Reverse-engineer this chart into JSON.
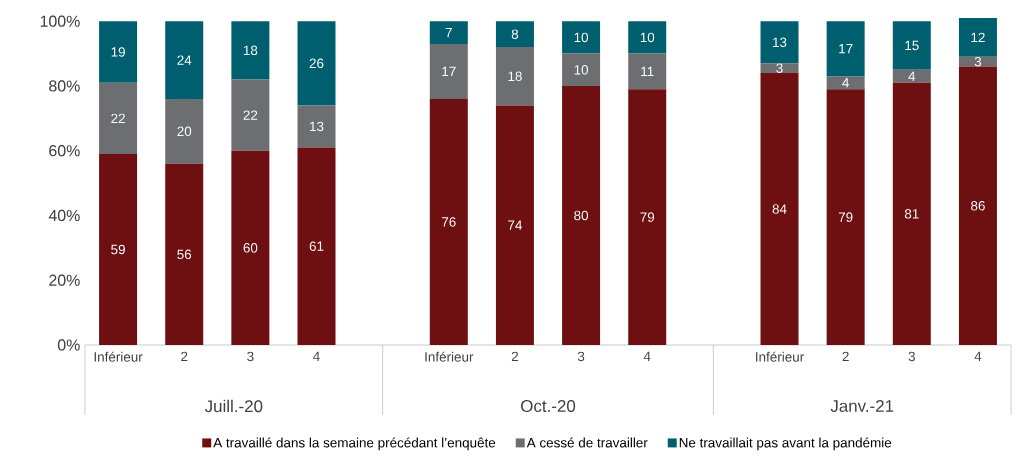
{
  "chart_data": {
    "type": "bar",
    "stacked": true,
    "data_labels": true,
    "legend": "bottom",
    "grid": false,
    "ylim": [
      0,
      101
    ],
    "yticks": [
      {
        "value": 0,
        "label": "0%"
      },
      {
        "value": 20,
        "label": "20%"
      },
      {
        "value": 40,
        "label": "40%"
      },
      {
        "value": 60,
        "label": "60%"
      },
      {
        "value": 80,
        "label": "80%"
      },
      {
        "value": 100,
        "label": "100%"
      }
    ],
    "categories": [
      "Inférieur",
      "2",
      "3",
      "4",
      null,
      "Inférieur",
      "2",
      "3",
      "4",
      null,
      "Inférieur",
      "2",
      "3",
      "4"
    ],
    "annotations": [
      "Juill.-20",
      "Oct.-20",
      "Janv.-21"
    ],
    "series": [
      {
        "name": "A travaillé dans la semaine précédant l’enquête",
        "color": "#6e1012",
        "values": [
          59,
          56,
          60,
          61,
          null,
          76,
          74,
          80,
          79,
          null,
          84,
          79,
          81,
          86
        ]
      },
      {
        "name": "A cessé de travailler",
        "color": "#6d6e71",
        "values": [
          22,
          20,
          22,
          13,
          null,
          17,
          18,
          10,
          11,
          null,
          3,
          4,
          4,
          3
        ]
      },
      {
        "name": "Ne travaillait pas avant la pandémie",
        "color": "#005f6e",
        "values": [
          19,
          24,
          18,
          26,
          null,
          7,
          8,
          10,
          10,
          null,
          13,
          17,
          15,
          12
        ]
      }
    ]
  }
}
